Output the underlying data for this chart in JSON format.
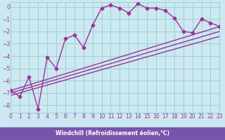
{
  "xlabel": "Windchill (Refroidissement éolien,°C)",
  "bg_color": "#cce8f0",
  "line_color": "#993399",
  "grid_color": "#99cccc",
  "xlabel_bg": "#7755aa",
  "xlabel_color": "#ffffff",
  "xlim": [
    0,
    23
  ],
  "ylim": [
    -8.6,
    0.4
  ],
  "yticks": [
    0,
    -1,
    -2,
    -3,
    -4,
    -5,
    -6,
    -7,
    -8
  ],
  "xticks": [
    0,
    1,
    2,
    3,
    4,
    5,
    6,
    7,
    8,
    9,
    10,
    11,
    12,
    13,
    14,
    15,
    16,
    17,
    18,
    19,
    20,
    21,
    22,
    23
  ],
  "series": [
    {
      "x": [
        0,
        1,
        2,
        3,
        4,
        5,
        6,
        7,
        8,
        9,
        10,
        11,
        12,
        13,
        14,
        15,
        16,
        17,
        18,
        19,
        20,
        21,
        22,
        23
      ],
      "y": [
        -6.8,
        -7.3,
        -5.7,
        -8.3,
        -4.1,
        -5.0,
        -2.6,
        -2.3,
        -3.3,
        -1.5,
        -0.1,
        0.15,
        -0.1,
        -0.5,
        0.25,
        -0.1,
        -0.1,
        -0.3,
        -0.9,
        -2.0,
        -2.1,
        -1.0,
        -1.3,
        -1.6
      ],
      "marker": "D",
      "markersize": 2.5,
      "linewidth": 1.0
    },
    {
      "x": [
        0,
        23
      ],
      "y": [
        -6.8,
        -1.6
      ],
      "marker": null,
      "linewidth": 1.0
    },
    {
      "x": [
        0,
        23
      ],
      "y": [
        -7.0,
        -2.0
      ],
      "marker": null,
      "linewidth": 1.0
    },
    {
      "x": [
        0,
        23
      ],
      "y": [
        -7.2,
        -2.4
      ],
      "marker": null,
      "linewidth": 1.0
    }
  ]
}
